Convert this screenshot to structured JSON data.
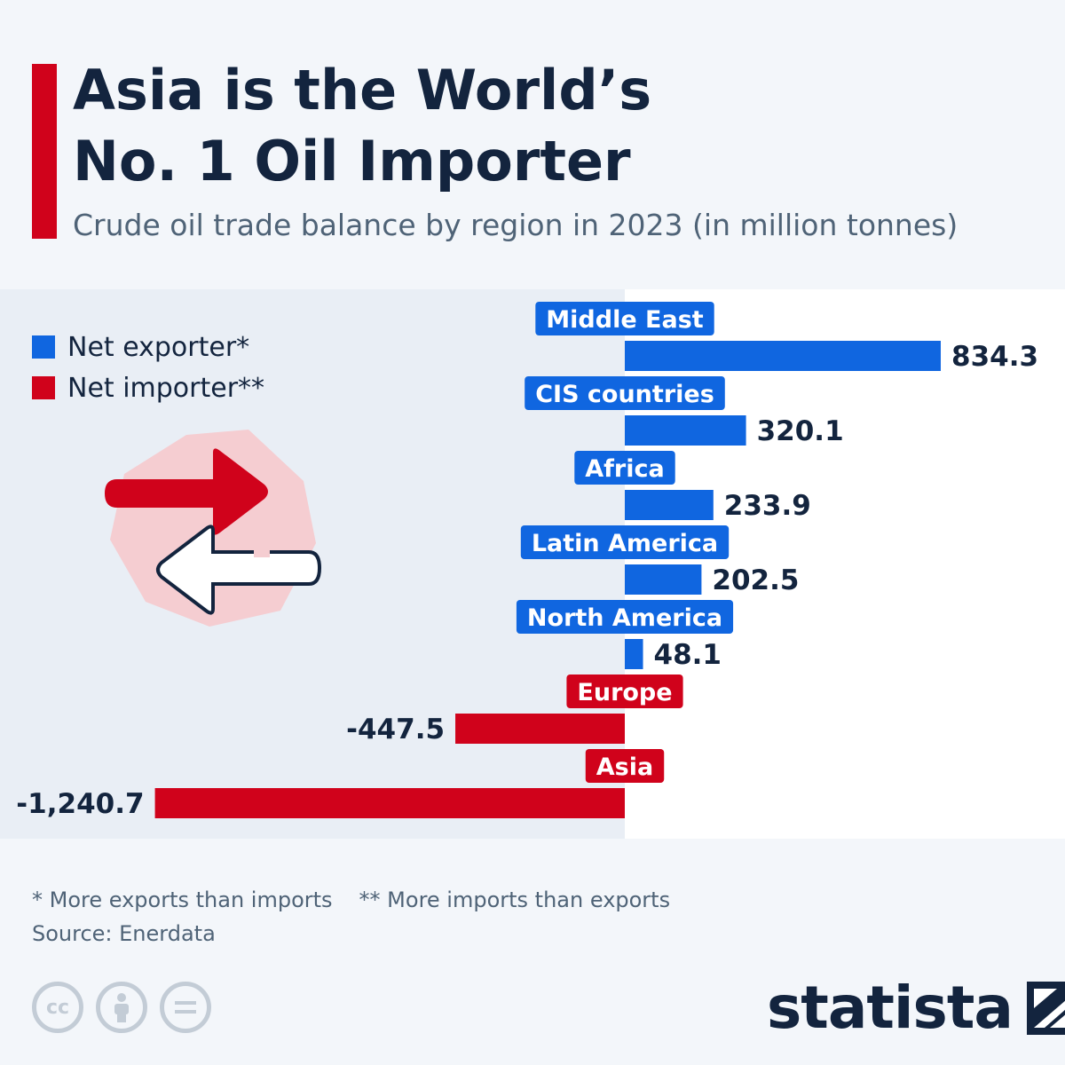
{
  "header": {
    "title_line1": "Asia is the World’s",
    "title_line2": "No. 1 Oil Importer",
    "subtitle": "Crude oil trade balance by region in 2023 (in million tonnes)"
  },
  "legend": {
    "items": [
      {
        "label": "Net exporter*",
        "color": "#1066e0"
      },
      {
        "label": "Net importer**",
        "color": "#d0021b"
      }
    ]
  },
  "chart_data": {
    "type": "bar",
    "orientation": "horizontal",
    "title": "Asia is the World’s No. 1 Oil Importer",
    "subtitle": "Crude oil trade balance by region in 2023 (in million tonnes)",
    "categories": [
      "Middle East",
      "CIS countries",
      "Africa",
      "Latin America",
      "North America",
      "Europe",
      "Asia"
    ],
    "values": [
      834.3,
      320.1,
      233.9,
      202.5,
      48.1,
      -447.5,
      -1240.7
    ],
    "value_labels": [
      "834.3",
      "320.1",
      "233.9",
      "202.5",
      "48.1",
      "-447.5",
      "-1,240.7"
    ],
    "series_colors": {
      "positive": "#1066e0",
      "negative": "#d0021b"
    },
    "xlim": [
      -1240.7,
      834.3
    ],
    "grid": false,
    "legend_position": "top-left"
  },
  "footer": {
    "note_exporter": "* More exports than imports",
    "note_importer": "** More imports than exports",
    "source": "Source: Enerdata",
    "brand": "statista"
  },
  "icons": {
    "cc": "creative-commons-icon",
    "by": "attribution-icon",
    "nd": "no-derivatives-icon",
    "trade": "trade-arrows-icon"
  }
}
